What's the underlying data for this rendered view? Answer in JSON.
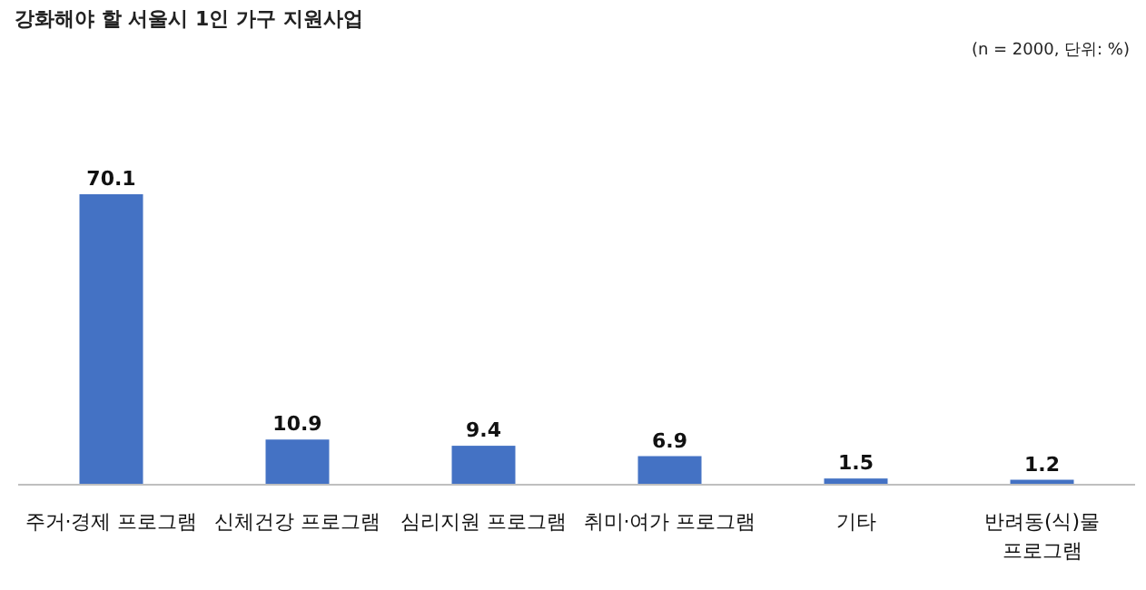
{
  "chart_data": {
    "type": "bar",
    "title": "강화해야 할 서울시 1인 가구 지원사업",
    "annotations": [
      "(n = 2000, 단위: %)"
    ],
    "categories": [
      "주거·경제 프로그램",
      "신체건강 프로그램",
      "심리지원 프로그램",
      "취미·여가 프로그램",
      "기타",
      "반려동(식)물 프로그램"
    ],
    "values": [
      70.1,
      10.9,
      9.4,
      6.9,
      1.5,
      1.2
    ],
    "color": "#4472c4",
    "data_labels": true
  }
}
